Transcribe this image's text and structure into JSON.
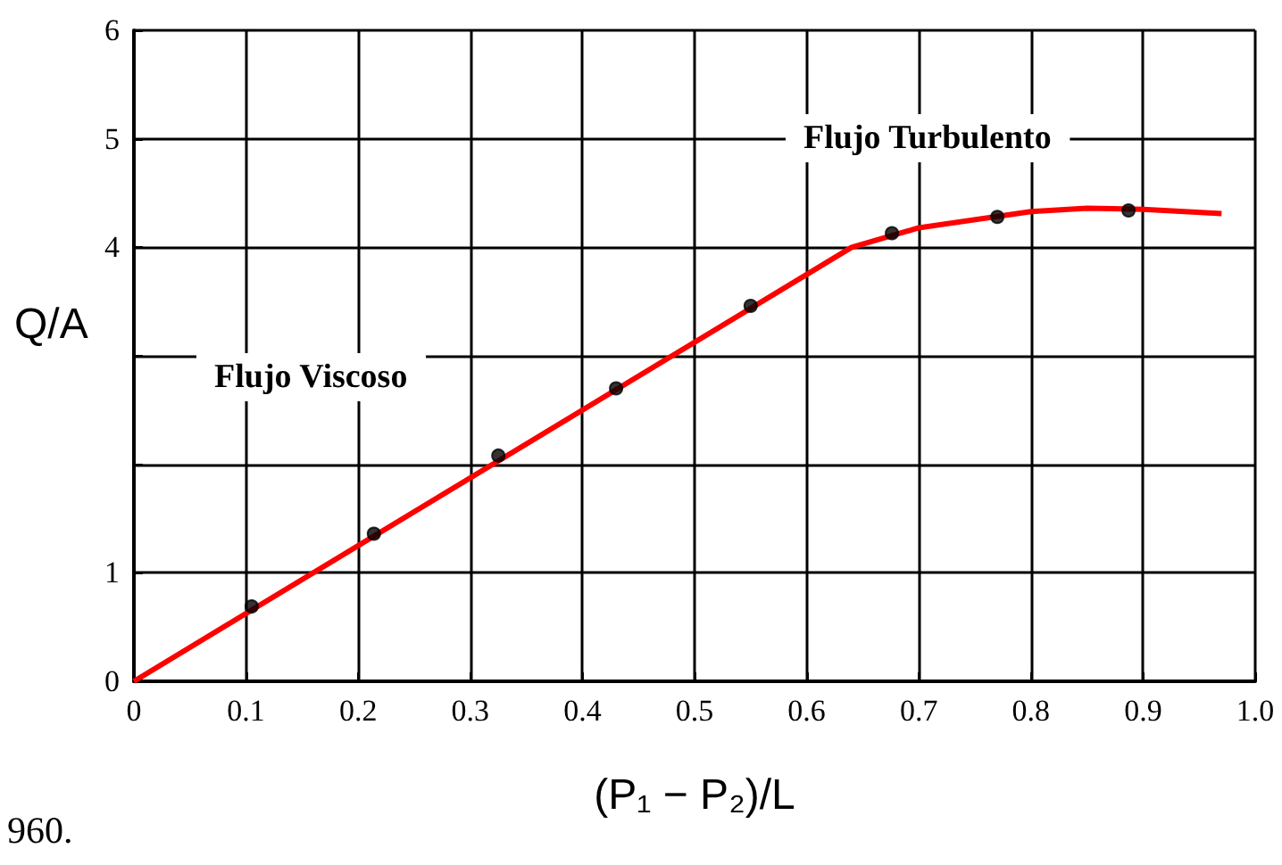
{
  "chart_data": {
    "type": "scatter",
    "xlabel": "(P₁ − P₂)/L",
    "ylabel": "Q/A",
    "x": [
      0.105,
      0.214,
      0.325,
      0.43,
      0.55,
      0.676,
      0.77,
      0.887
    ],
    "series": [
      {
        "color": "#000000",
        "marker": "circle",
        "values": [
          0.69,
          1.36,
          2.08,
          2.7,
          3.46,
          4.13,
          4.28,
          4.34
        ]
      },
      {
        "type": "line",
        "color": "#ff0000",
        "marker": "none",
        "x": [
          0,
          0.64,
          0.7,
          0.8,
          0.85,
          0.9,
          0.97
        ],
        "values": [
          0,
          4.0,
          4.18,
          4.33,
          4.36,
          4.35,
          4.31
        ]
      }
    ],
    "xlim": [
      0,
      1.0
    ],
    "xticks": [
      0,
      0.1,
      0.2,
      0.3,
      0.4,
      0.5,
      0.6,
      0.7,
      0.8,
      0.9,
      {
        "value": 1.0,
        "label": "1.0"
      }
    ],
    "ylim": [
      0,
      6
    ],
    "yticks": [
      0,
      1,
      {
        "value": 2,
        "label": null
      },
      {
        "value": 3,
        "label": null
      },
      4,
      5,
      6
    ],
    "grid": true,
    "annotations": [
      "Flujo Viscoso",
      "Flujo Turbulento",
      "960."
    ]
  }
}
